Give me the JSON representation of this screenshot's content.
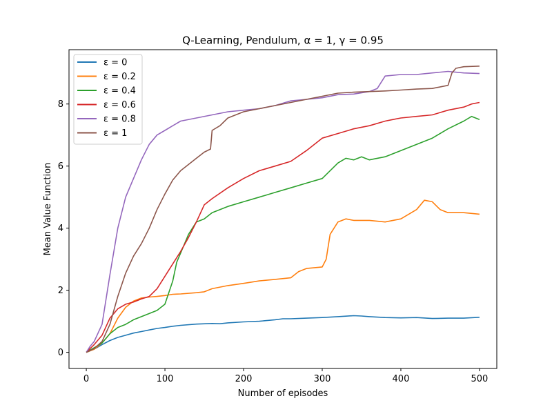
{
  "chart_data": {
    "type": "line",
    "title": "Q-Learning, Pendulum, α = 1, γ = 0.95",
    "xlabel": "Number of episodes",
    "ylabel": "Mean Value Function",
    "xlim": [
      -22,
      522
    ],
    "ylim": [
      -0.52,
      9.75
    ],
    "xticks": [
      0,
      100,
      200,
      300,
      400,
      500
    ],
    "yticks": [
      0,
      2,
      4,
      6,
      8
    ],
    "grid": false,
    "legend_position": "top-left",
    "series": [
      {
        "name": "ε = 0",
        "color": "#1f77b4",
        "x": [
          0,
          10,
          20,
          30,
          40,
          50,
          60,
          70,
          80,
          90,
          100,
          110,
          120,
          140,
          160,
          170,
          180,
          200,
          220,
          240,
          250,
          260,
          280,
          300,
          320,
          340,
          350,
          360,
          380,
          400,
          420,
          440,
          460,
          480,
          500
        ],
        "y": [
          0.0,
          0.1,
          0.25,
          0.38,
          0.48,
          0.55,
          0.62,
          0.67,
          0.72,
          0.77,
          0.8,
          0.84,
          0.87,
          0.91,
          0.93,
          0.92,
          0.95,
          0.98,
          1.0,
          1.05,
          1.08,
          1.08,
          1.1,
          1.12,
          1.15,
          1.18,
          1.17,
          1.15,
          1.12,
          1.11,
          1.12,
          1.09,
          1.1,
          1.1,
          1.13
        ]
      },
      {
        "name": "ε = 0.2",
        "color": "#ff7f0e",
        "x": [
          0,
          10,
          20,
          30,
          40,
          50,
          60,
          70,
          80,
          90,
          100,
          110,
          120,
          140,
          150,
          160,
          180,
          200,
          220,
          240,
          260,
          270,
          280,
          300,
          305,
          310,
          320,
          330,
          340,
          360,
          380,
          400,
          420,
          430,
          440,
          450,
          460,
          480,
          500
        ],
        "y": [
          0.0,
          0.1,
          0.3,
          0.6,
          1.1,
          1.45,
          1.65,
          1.75,
          1.78,
          1.8,
          1.83,
          1.87,
          1.88,
          1.92,
          1.95,
          2.05,
          2.15,
          2.22,
          2.3,
          2.35,
          2.4,
          2.6,
          2.7,
          2.75,
          3.0,
          3.8,
          4.2,
          4.3,
          4.25,
          4.25,
          4.2,
          4.3,
          4.6,
          4.9,
          4.85,
          4.6,
          4.5,
          4.5,
          4.45
        ]
      },
      {
        "name": "ε = 0.4",
        "color": "#2ca02c",
        "x": [
          0,
          10,
          20,
          30,
          40,
          50,
          60,
          70,
          80,
          90,
          100,
          110,
          115,
          120,
          130,
          140,
          150,
          160,
          180,
          200,
          220,
          240,
          260,
          280,
          300,
          320,
          330,
          340,
          350,
          360,
          380,
          400,
          420,
          440,
          460,
          480,
          490,
          500
        ],
        "y": [
          0.0,
          0.15,
          0.3,
          0.6,
          0.8,
          0.9,
          1.05,
          1.15,
          1.25,
          1.35,
          1.55,
          2.3,
          2.9,
          3.2,
          3.8,
          4.2,
          4.3,
          4.5,
          4.7,
          4.85,
          5.0,
          5.15,
          5.3,
          5.45,
          5.6,
          6.1,
          6.25,
          6.2,
          6.3,
          6.2,
          6.3,
          6.5,
          6.7,
          6.9,
          7.2,
          7.45,
          7.6,
          7.5
        ]
      },
      {
        "name": "ε = 0.6",
        "color": "#d62728",
        "x": [
          0,
          10,
          20,
          30,
          40,
          50,
          60,
          70,
          80,
          90,
          100,
          110,
          120,
          130,
          140,
          150,
          160,
          180,
          200,
          220,
          240,
          260,
          280,
          300,
          320,
          340,
          360,
          380,
          390,
          400,
          420,
          440,
          460,
          480,
          490,
          500
        ],
        "y": [
          0.0,
          0.25,
          0.55,
          1.1,
          1.4,
          1.55,
          1.62,
          1.72,
          1.8,
          2.05,
          2.45,
          2.85,
          3.25,
          3.7,
          4.2,
          4.75,
          4.95,
          5.3,
          5.6,
          5.85,
          6.0,
          6.15,
          6.5,
          6.9,
          7.05,
          7.2,
          7.3,
          7.45,
          7.5,
          7.55,
          7.6,
          7.65,
          7.8,
          7.9,
          8.0,
          8.05
        ]
      },
      {
        "name": "ε = 0.8",
        "color": "#9467bd",
        "x": [
          0,
          5,
          10,
          20,
          30,
          40,
          50,
          60,
          70,
          80,
          90,
          100,
          110,
          120,
          140,
          160,
          180,
          200,
          220,
          240,
          260,
          280,
          300,
          320,
          340,
          360,
          370,
          380,
          400,
          420,
          440,
          460,
          480,
          500
        ],
        "y": [
          0.0,
          0.2,
          0.35,
          0.9,
          2.5,
          4.0,
          5.0,
          5.6,
          6.2,
          6.7,
          7.0,
          7.15,
          7.3,
          7.45,
          7.55,
          7.65,
          7.75,
          7.8,
          7.85,
          7.95,
          8.1,
          8.15,
          8.2,
          8.3,
          8.32,
          8.4,
          8.5,
          8.9,
          8.95,
          8.95,
          9.0,
          9.05,
          9.0,
          8.98
        ]
      },
      {
        "name": "ε = 1",
        "color": "#8c564b",
        "x": [
          0,
          10,
          20,
          30,
          40,
          50,
          60,
          70,
          80,
          90,
          100,
          110,
          120,
          130,
          140,
          150,
          158,
          160,
          170,
          180,
          200,
          220,
          240,
          260,
          280,
          300,
          320,
          340,
          360,
          380,
          400,
          420,
          440,
          460,
          465,
          470,
          480,
          500
        ],
        "y": [
          0.0,
          0.12,
          0.35,
          0.9,
          1.8,
          2.55,
          3.1,
          3.5,
          4.0,
          4.6,
          5.1,
          5.55,
          5.85,
          6.05,
          6.25,
          6.45,
          6.55,
          7.15,
          7.3,
          7.55,
          7.75,
          7.85,
          7.95,
          8.05,
          8.15,
          8.25,
          8.35,
          8.38,
          8.4,
          8.42,
          8.45,
          8.48,
          8.5,
          8.6,
          9.0,
          9.15,
          9.2,
          9.22
        ]
      }
    ]
  }
}
